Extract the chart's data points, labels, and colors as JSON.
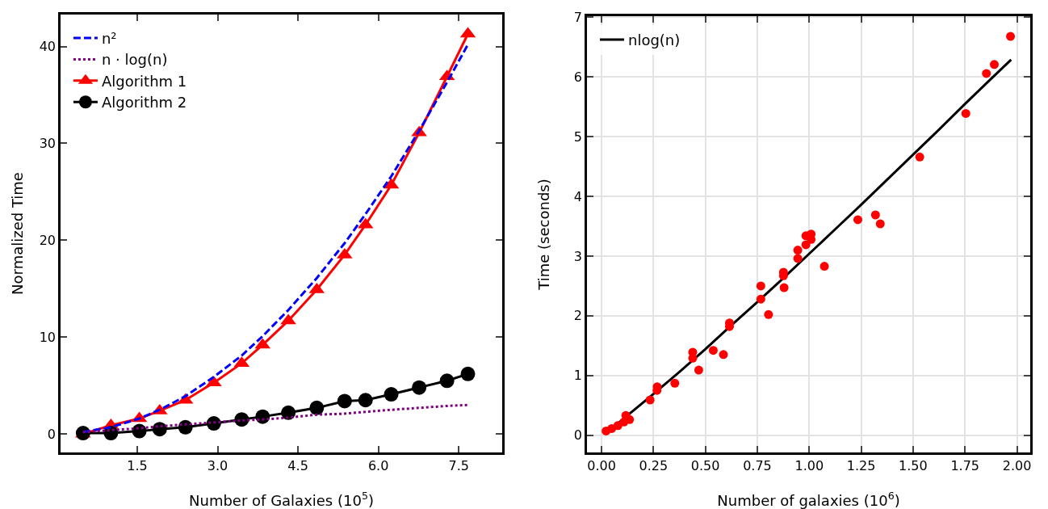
{
  "chart_data": [
    {
      "type": "line",
      "xlabel": "Number of Galaxies (10$^{5}$)",
      "ylabel": "Normalized Time",
      "xlim": [
        0.07,
        8.31
      ],
      "ylim": [
        -1.9,
        43.3
      ],
      "xticks": [
        1.5,
        {
          "value": 3,
          "label": "3.0"
        },
        4.5,
        {
          "value": 6,
          "label": "6.0"
        },
        7.5
      ],
      "yticks": [
        0,
        10,
        20,
        30,
        40
      ],
      "grid": false,
      "legend": "top left",
      "x": [
        0.49,
        1.01,
        1.54,
        1.92,
        2.4,
        2.93,
        3.45,
        3.84,
        4.32,
        4.85,
        5.37,
        5.76,
        6.24,
        6.76,
        7.28,
        7.67
      ],
      "series": [
        {
          "name": "n²",
          "color": "#0000ff",
          "line_style": "dashed",
          "marker": "none",
          "values": [
            0.2,
            0.7,
            1.6,
            2.5,
            3.9,
            5.9,
            8.1,
            10.1,
            12.8,
            16.1,
            19.7,
            22.7,
            26.6,
            31.3,
            36.3,
            40.2
          ]
        },
        {
          "name": "n · log(n)",
          "color": "#800080",
          "line_style": "dotted",
          "marker": "none",
          "values": [
            0.2,
            0.4,
            0.6,
            0.8,
            1.0,
            1.2,
            1.4,
            1.5,
            1.7,
            2.0,
            2.1,
            2.3,
            2.5,
            2.7,
            2.9,
            3.0
          ]
        },
        {
          "name": "Algorithm 1",
          "color": "#ff0000",
          "line_style": "solid",
          "marker": "triangle",
          "values": [
            0,
            0.9,
            1.6,
            2.4,
            3.5,
            5.3,
            7.3,
            9.2,
            11.7,
            14.9,
            18.5,
            21.6,
            25.7,
            31.1,
            36.9,
            41.3
          ]
        },
        {
          "name": "Algorithm 2",
          "color": "#000000",
          "line_style": "solid",
          "marker": "circle",
          "values": [
            0.1,
            0.1,
            0.3,
            0.5,
            0.7,
            1.1,
            1.5,
            1.8,
            2.2,
            2.7,
            3.4,
            3.5,
            4.1,
            4.8,
            5.5,
            6.2
          ]
        }
      ]
    },
    {
      "type": "scatter",
      "xlabel": "Number of galaxies (10$^{6}$)",
      "ylabel": "Time (seconds)",
      "xlim": [
        -0.07,
        2.064
      ],
      "ylim": [
        -0.29,
        7.02
      ],
      "xticks": [
        {
          "value": 0,
          "label": "0.00"
        },
        0.25,
        {
          "value": 0.5,
          "label": "0.50"
        },
        0.75,
        {
          "value": 1,
          "label": "1.00"
        },
        1.25,
        {
          "value": 1.5,
          "label": "1.50"
        },
        1.75,
        {
          "value": 2,
          "label": "2.00"
        }
      ],
      "yticks": [
        0,
        1,
        2,
        3,
        4,
        5,
        6,
        7
      ],
      "grid": true,
      "legend": "top left",
      "series": [
        {
          "color": "#ff0000",
          "marker": "circle",
          "x": [
            0.022,
            0.049,
            0.079,
            0.108,
            0.117,
            0.135,
            0.234,
            0.268,
            0.267,
            0.353,
            0.439,
            0.439,
            0.468,
            0.538,
            0.587,
            0.616,
            0.616,
            0.767,
            0.767,
            0.804,
            0.876,
            0.876,
            0.879,
            0.945,
            0.945,
            0.984,
            0.984,
            1.009,
            1.009,
            1.073,
            1.234,
            1.319,
            1.342,
            1.532,
            1.754,
            1.853,
            1.891,
            1.969
          ],
          "values": [
            0.07,
            0.11,
            0.16,
            0.22,
            0.33,
            0.26,
            0.59,
            0.81,
            0.75,
            0.87,
            1.39,
            1.29,
            1.09,
            1.42,
            1.35,
            1.88,
            1.82,
            2.5,
            2.28,
            2.02,
            2.73,
            2.67,
            2.47,
            3.1,
            2.96,
            3.34,
            3.19,
            3.37,
            3.28,
            2.83,
            3.61,
            3.69,
            3.54,
            4.66,
            5.39,
            6.06,
            6.21,
            6.68
          ]
        },
        {
          "name": "nlog(n)",
          "type": "line",
          "color": "#000000",
          "line_style": "solid",
          "marker": "none",
          "x": [
            0.022,
            0.125,
            0.25,
            0.375,
            0.5,
            0.625,
            0.75,
            0.875,
            1.0,
            1.125,
            1.25,
            1.375,
            1.5,
            1.625,
            1.75,
            1.875,
            1.972
          ],
          "values": [
            0.03,
            0.33,
            0.69,
            1.06,
            1.44,
            1.84,
            2.23,
            2.63,
            3.04,
            3.45,
            3.86,
            4.28,
            4.7,
            5.12,
            5.55,
            5.97,
            6.29
          ]
        }
      ]
    }
  ]
}
